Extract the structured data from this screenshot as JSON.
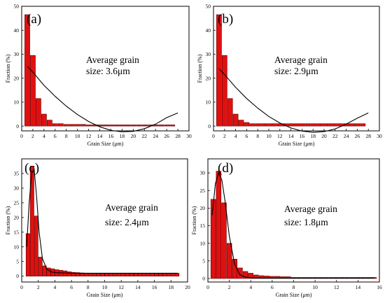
{
  "chart_data": [
    {
      "type": "bar",
      "tag": "(a)",
      "xlabel": "Grain Size (μm)",
      "ylabel": "Fraction (%)",
      "xlim": [
        0,
        30
      ],
      "ylim": [
        -2,
        50
      ],
      "xticks": [
        0,
        2,
        4,
        6,
        8,
        10,
        12,
        14,
        16,
        18,
        20,
        22,
        24,
        26,
        28,
        30
      ],
      "yticks": [
        0,
        10,
        20,
        30,
        40,
        50
      ],
      "bar_width": 0.9,
      "x": [
        1,
        2,
        3,
        4,
        5,
        6,
        7,
        8,
        9,
        10,
        11,
        12,
        13,
        14,
        15,
        16,
        17,
        18,
        19,
        20,
        21,
        22,
        23,
        24,
        25,
        26,
        27
      ],
      "values": [
        46.5,
        29.5,
        11.5,
        5,
        2.5,
        1,
        1,
        0.7,
        0.7,
        0.7,
        0.7,
        0.5,
        0.5,
        0.5,
        0.5,
        0.5,
        0.5,
        0.5,
        0.5,
        0.5,
        0.5,
        0.5,
        0.5,
        0.5,
        0.5,
        0.5,
        0.5
      ],
      "fit_x": [
        1,
        2,
        4,
        6,
        8,
        10,
        12,
        14,
        16,
        18,
        20,
        22,
        24,
        26,
        28
      ],
      "fit_y": [
        25,
        22.5,
        17,
        12.4,
        8.3,
        4.8,
        1.9,
        -0.3,
        -1.8,
        -2.4,
        -2.2,
        -1.1,
        0.8,
        3.5,
        5.5
      ],
      "annotation": [
        "Average grain",
        "size: 3.6μm"
      ]
    },
    {
      "type": "bar",
      "tag": "(b)",
      "xlabel": "Grain Size (μm)",
      "ylabel": "Fraction (%)",
      "xlim": [
        0,
        30
      ],
      "ylim": [
        -2,
        50
      ],
      "xticks": [
        0,
        2,
        4,
        6,
        8,
        10,
        12,
        14,
        16,
        18,
        20,
        22,
        24,
        26,
        28,
        30
      ],
      "yticks": [
        0,
        10,
        20,
        30,
        40,
        50
      ],
      "bar_width": 0.9,
      "x": [
        1,
        2,
        3,
        4,
        5,
        6,
        7,
        8,
        9,
        10,
        11,
        12,
        13,
        14,
        15,
        16,
        17,
        18,
        19,
        20,
        21,
        22,
        23,
        24,
        25,
        26,
        27
      ],
      "values": [
        46.5,
        29.5,
        11.5,
        5,
        2.5,
        1.5,
        1,
        1,
        1,
        1,
        1,
        1,
        1,
        1,
        1,
        1,
        1,
        1,
        1,
        1,
        1,
        1,
        1,
        1,
        1,
        1,
        1
      ],
      "fit_x": [
        1,
        2,
        4,
        6,
        8,
        10,
        12,
        14,
        16,
        18,
        20,
        22,
        24,
        26,
        28
      ],
      "fit_y": [
        24,
        21.5,
        16.2,
        11.5,
        7.5,
        4,
        1.3,
        -0.8,
        -2.1,
        -2.6,
        -2.3,
        -1.2,
        0.8,
        3.3,
        5.5
      ],
      "annotation": [
        "Average grain",
        "size: 2.9μm"
      ]
    },
    {
      "type": "bar",
      "tag": "(c)",
      "xlabel": "Grain Size (μm)",
      "ylabel": "Fraction (%)",
      "xlim": [
        0,
        20
      ],
      "ylim": [
        -2,
        40
      ],
      "xticks": [
        0,
        2,
        4,
        6,
        8,
        10,
        12,
        14,
        16,
        18,
        20
      ],
      "yticks": [
        0,
        5,
        10,
        15,
        20,
        25,
        30,
        35
      ],
      "bar_width": 0.45,
      "x": [
        0.75,
        1.25,
        1.75,
        2.25,
        2.75,
        3.25,
        3.75,
        4.25,
        4.75,
        5.25,
        5.75,
        6.25,
        6.75,
        7.25,
        7.75,
        8.25,
        8.75,
        9.25,
        9.75,
        10.25,
        10.75,
        11.25,
        11.75,
        12.25,
        12.75,
        13.25,
        13.75,
        14.25,
        14.75,
        15.25,
        15.75,
        16.25,
        16.75,
        17.25,
        17.75,
        18.25,
        18.75
      ],
      "values": [
        14.5,
        37.5,
        20.5,
        6.5,
        3.5,
        2.8,
        2.5,
        2.2,
        2,
        1.8,
        1.5,
        1.3,
        1.2,
        1.1,
        1,
        1,
        1,
        1,
        1,
        1,
        1,
        1,
        1,
        1,
        1,
        1,
        1,
        1,
        1,
        1,
        1,
        1,
        1,
        1,
        1,
        1,
        1
      ],
      "fit_x": [
        0.6,
        0.9,
        1.2,
        1.5,
        1.8,
        2.1,
        2.5,
        3,
        3.5,
        4,
        5,
        6,
        8,
        10,
        12,
        14,
        16,
        18,
        18.8
      ],
      "fit_y": [
        10,
        25,
        35,
        36.5,
        27,
        15,
        6,
        2.5,
        1.5,
        1.2,
        1.1,
        1,
        1,
        1,
        1,
        1,
        1,
        1,
        1
      ],
      "annotation": [
        "Average grain",
        "size: 2.4μm"
      ]
    },
    {
      "type": "bar",
      "tag": "(d)",
      "xlabel": "Grain Size (μm)",
      "ylabel": "Fraction (%)",
      "xlim": [
        0,
        16
      ],
      "ylim": [
        -1,
        34
      ],
      "xticks": [
        0,
        2,
        4,
        6,
        8,
        10,
        12,
        14,
        16
      ],
      "yticks": [
        0,
        5,
        10,
        15,
        20,
        25,
        30
      ],
      "bar_width": 0.45,
      "x": [
        0.5,
        1,
        1.5,
        2,
        2.5,
        3,
        3.5,
        4,
        4.5,
        5,
        5.5,
        6,
        6.5,
        7,
        7.5,
        8,
        8.5,
        9,
        9.5,
        10,
        10.5,
        11,
        11.5,
        12,
        12.5,
        13,
        13.5,
        14,
        14.5,
        15,
        15.5
      ],
      "values": [
        22.5,
        30.5,
        21.5,
        10,
        5.5,
        3,
        2,
        1.5,
        1,
        0.8,
        0.7,
        0.6,
        0.6,
        0.5,
        0.5,
        0.3,
        0.3,
        0.3,
        0.3,
        0.3,
        0.3,
        0.3,
        0.3,
        0.3,
        0.3,
        0.3,
        0.3,
        0.3,
        0.3,
        0.3,
        0.3
      ],
      "fit_x": [
        0.4,
        0.7,
        1,
        1.3,
        1.6,
        2,
        2.5,
        3,
        3.5,
        4,
        5,
        6,
        8,
        10,
        12,
        14,
        15.5
      ],
      "fit_y": [
        18,
        27,
        30,
        28,
        22,
        12,
        4,
        1,
        0.4,
        0.2,
        0.1,
        0.1,
        0.1,
        0.1,
        0.1,
        0.1,
        0.1
      ],
      "annotation": [
        "Average grain",
        "size: 1.8μm"
      ]
    }
  ]
}
